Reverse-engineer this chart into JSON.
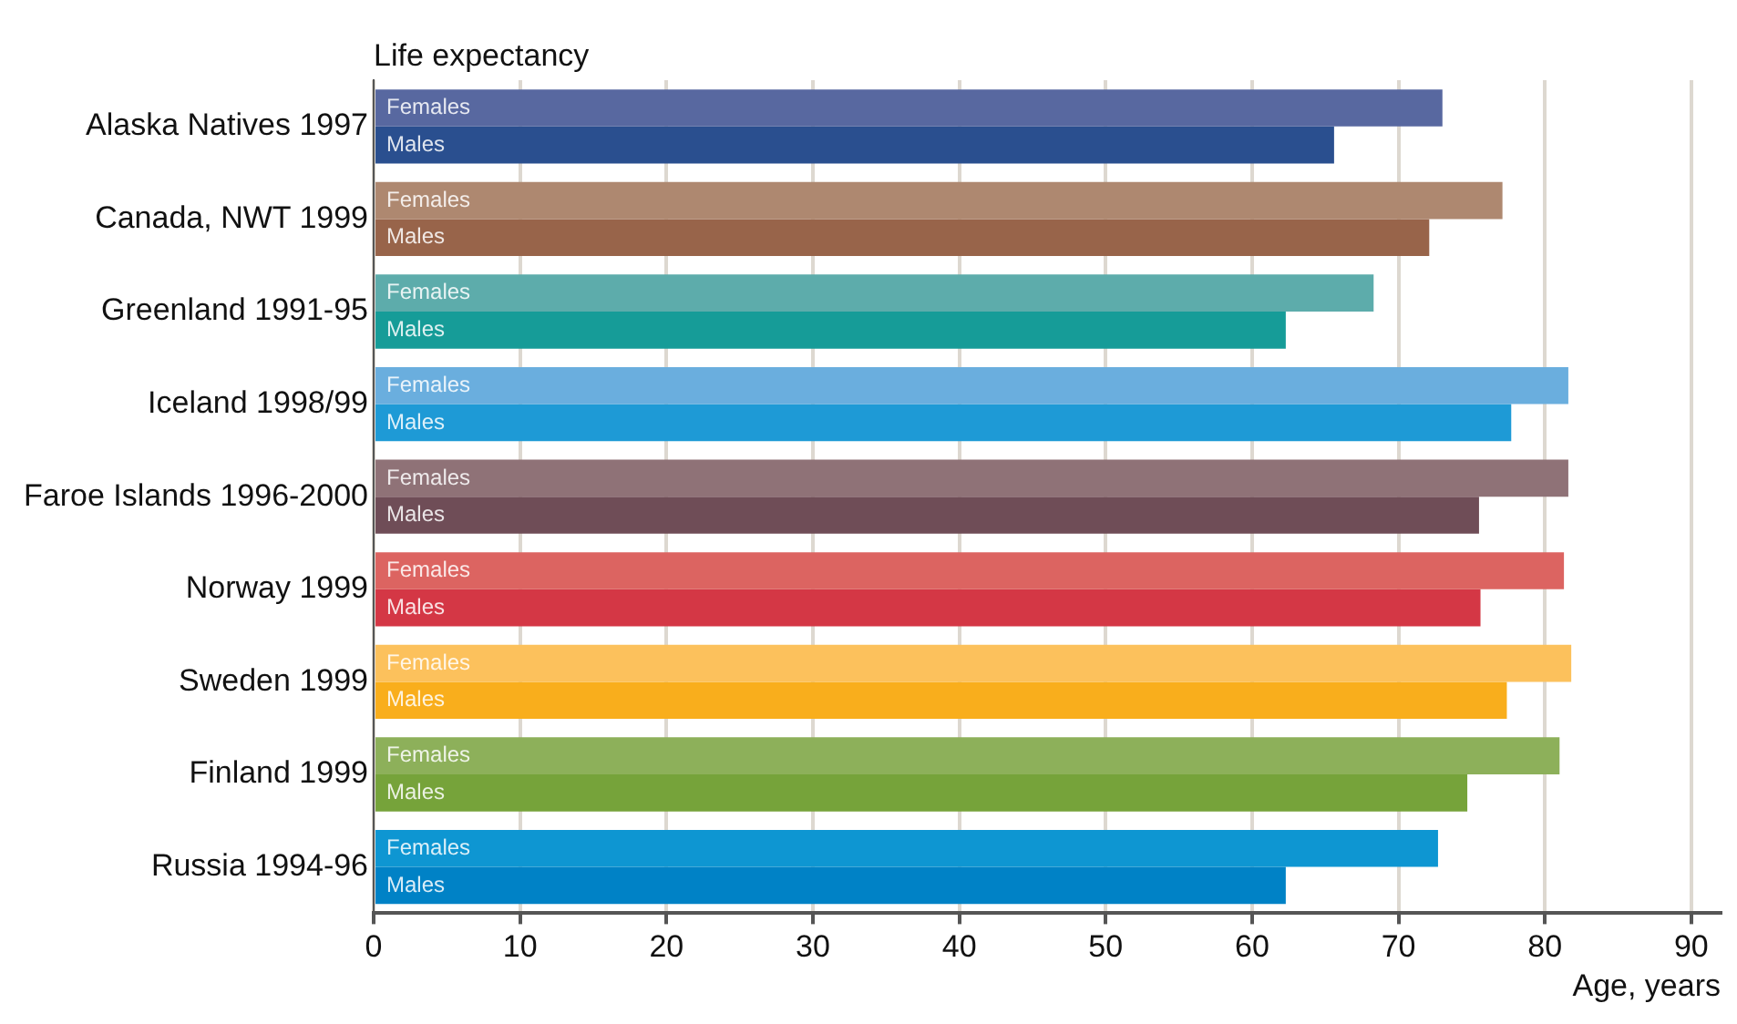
{
  "chart_data": {
    "type": "bar",
    "orientation": "horizontal",
    "title": "Life expectancy",
    "xlabel": "Age, years",
    "categories": [
      "Alaska Natives 1997",
      "Canada, NWT 1999",
      "Greenland 1991-95",
      "Iceland 1998/99",
      "Faroe Islands 1996-2000",
      "Norway 1999",
      "Sweden 1999",
      "Finland 1999",
      "Russia 1994-96"
    ],
    "series": [
      {
        "name": "Females",
        "colors": [
          "#5868a0",
          "#ae8870",
          "#5dacab",
          "#6aaede",
          "#8f7277",
          "#dc6461",
          "#fcc15c",
          "#8db05a",
          "#0e96d2"
        ],
        "values": [
          73.0,
          77.1,
          68.3,
          81.6,
          81.6,
          81.3,
          81.8,
          81.0,
          72.7
        ]
      },
      {
        "name": "Males",
        "colors": [
          "#2a4f8f",
          "#98644a",
          "#169c98",
          "#1e9ad6",
          "#6f4d57",
          "#d43745",
          "#f9ae1c",
          "#76a33a",
          "#0082c6"
        ],
        "values": [
          65.6,
          72.1,
          62.3,
          77.7,
          75.5,
          75.6,
          77.4,
          74.7,
          62.3
        ]
      }
    ],
    "xlim": [
      0,
      92
    ],
    "xticks": [
      0,
      10,
      20,
      30,
      40,
      50,
      60,
      70,
      80,
      90
    ],
    "grid": "x",
    "legend": false
  }
}
